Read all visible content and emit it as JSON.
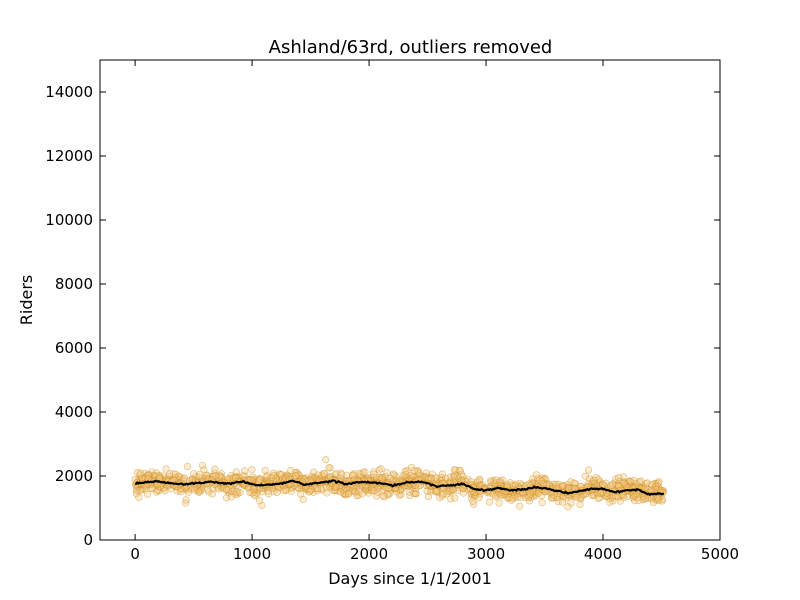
{
  "chart_data": {
    "type": "scatter",
    "title": "Ashland/63rd, outliers removed",
    "xlabel": "Days since 1/1/2001",
    "ylabel": "Riders",
    "xlim": [
      -300,
      5000
    ],
    "ylim": [
      0,
      15000
    ],
    "x_ticks": [
      0,
      1000,
      2000,
      3000,
      4000,
      5000
    ],
    "y_ticks": [
      0,
      2000,
      4000,
      6000,
      8000,
      10000,
      12000,
      14000
    ],
    "grid": false,
    "legend": "none",
    "x_range_of_points": [
      0,
      4520
    ],
    "series": [
      {
        "style": "scatter",
        "color": "#f5c97f",
        "edge_color": "#c88a1e",
        "trend_keyframes": [
          [
            0,
            1760
          ],
          [
            100,
            1800
          ],
          [
            200,
            1830
          ],
          [
            300,
            1770
          ],
          [
            420,
            1740
          ],
          [
            550,
            1790
          ],
          [
            650,
            1820
          ],
          [
            800,
            1760
          ],
          [
            920,
            1820
          ],
          [
            1050,
            1700
          ],
          [
            1150,
            1720
          ],
          [
            1250,
            1770
          ],
          [
            1350,
            1850
          ],
          [
            1450,
            1720
          ],
          [
            1550,
            1780
          ],
          [
            1700,
            1850
          ],
          [
            1800,
            1750
          ],
          [
            1950,
            1810
          ],
          [
            2100,
            1780
          ],
          [
            2200,
            1700
          ],
          [
            2300,
            1780
          ],
          [
            2450,
            1830
          ],
          [
            2580,
            1680
          ],
          [
            2700,
            1700
          ],
          [
            2800,
            1760
          ],
          [
            2900,
            1590
          ],
          [
            3000,
            1560
          ],
          [
            3100,
            1620
          ],
          [
            3200,
            1560
          ],
          [
            3300,
            1560
          ],
          [
            3400,
            1640
          ],
          [
            3500,
            1620
          ],
          [
            3600,
            1540
          ],
          [
            3700,
            1470
          ],
          [
            3800,
            1530
          ],
          [
            3900,
            1600
          ],
          [
            4000,
            1590
          ],
          [
            4100,
            1500
          ],
          [
            4200,
            1560
          ],
          [
            4300,
            1570
          ],
          [
            4400,
            1420
          ],
          [
            4520,
            1460
          ]
        ],
        "spread": 170,
        "count": 1500
      },
      {
        "style": "line",
        "color": "#000000",
        "values_from": "trend_keyframes"
      }
    ]
  }
}
